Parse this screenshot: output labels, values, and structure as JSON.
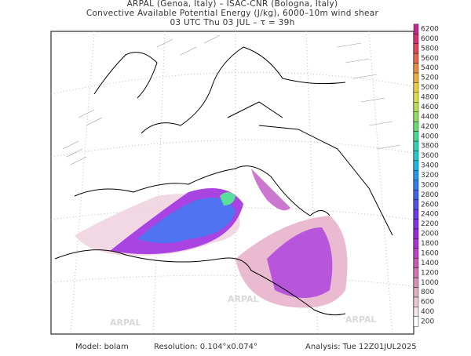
{
  "header": {
    "lines": [
      "ARPAL (Genoa, Italy)  –  ISAC-CNR (Bologna, Italy)",
      "Convective Available Potential Energy (J/kg), 6000–10m wind shear",
      "03 UTC Thu 03 JUL  –  τ = 39h"
    ]
  },
  "colorbar": {
    "labels": [
      "200",
      "400",
      "600",
      "800",
      "1000",
      "1200",
      "1400",
      "1600",
      "1800",
      "2000",
      "2200",
      "2400",
      "2600",
      "2800",
      "3000",
      "3200",
      "3400",
      "3600",
      "3800",
      "4000",
      "4200",
      "4400",
      "4600",
      "4800",
      "5000",
      "5200",
      "5400",
      "5600",
      "5800",
      "6000",
      "6200"
    ],
    "colors": [
      "#ffffff",
      "#f4e6ea",
      "#ecc8d4",
      "#e4aec4",
      "#dc90b8",
      "#d674b4",
      "#cc58b8",
      "#c040c8",
      "#b030d8",
      "#9c28e0",
      "#8830e8",
      "#6c38f0",
      "#5050f0",
      "#3c64f0",
      "#2c80f0",
      "#209cf0",
      "#18b8e8",
      "#20ccd0",
      "#30d4b0",
      "#48dc90",
      "#68e070",
      "#90e060",
      "#b8e050",
      "#dce048",
      "#f0d040",
      "#f0b040",
      "#ec8c40",
      "#e86848",
      "#e04858",
      "#d83070",
      "#c02890"
    ]
  },
  "watermark": "ARPAL",
  "footer": {
    "model": "Model: bolam",
    "resolution": "Resolution: 0.104°x0.074°",
    "analysis": "Analysis: Tue 12Z01JUL2025"
  }
}
